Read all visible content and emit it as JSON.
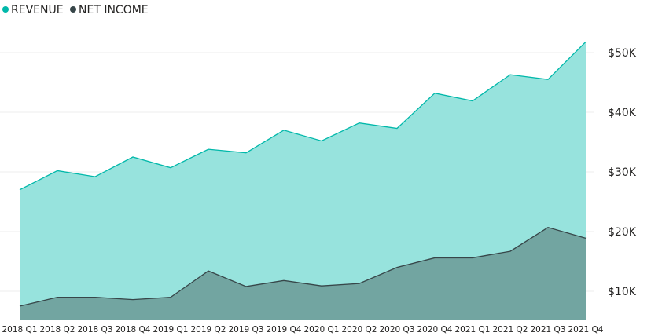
{
  "chart_data": {
    "type": "area",
    "categories": [
      "2018 Q1",
      "2018 Q2",
      "2018 Q3",
      "2018 Q4",
      "2019 Q1",
      "2019 Q2",
      "2019 Q3",
      "2019 Q4",
      "2020 Q1",
      "2020 Q2",
      "2020 Q3",
      "2020 Q4",
      "2021 Q1",
      "2021 Q2",
      "2021 Q3",
      "2021 Q4"
    ],
    "series": [
      {
        "name": "REVENUE",
        "color": "#01B8AA",
        "fill": "#97E3DD",
        "values": [
          27000,
          30200,
          29200,
          32500,
          30700,
          33800,
          33200,
          37000,
          35200,
          38200,
          37300,
          43200,
          41900,
          46300,
          45500,
          51800
        ]
      },
      {
        "name": "NET INCOME",
        "color": "#374649",
        "fill": "#72A5A1",
        "values": [
          7500,
          9000,
          9000,
          8600,
          9000,
          13400,
          10800,
          11800,
          10900,
          11300,
          14000,
          15600,
          15600,
          16700,
          20700,
          18900
        ]
      }
    ],
    "y_ticks": [
      "$10K",
      "$20K",
      "$30K",
      "$40K",
      "$50K"
    ],
    "ylim": [
      5000,
      55000
    ],
    "grid": true,
    "legend_position": "top-left"
  }
}
